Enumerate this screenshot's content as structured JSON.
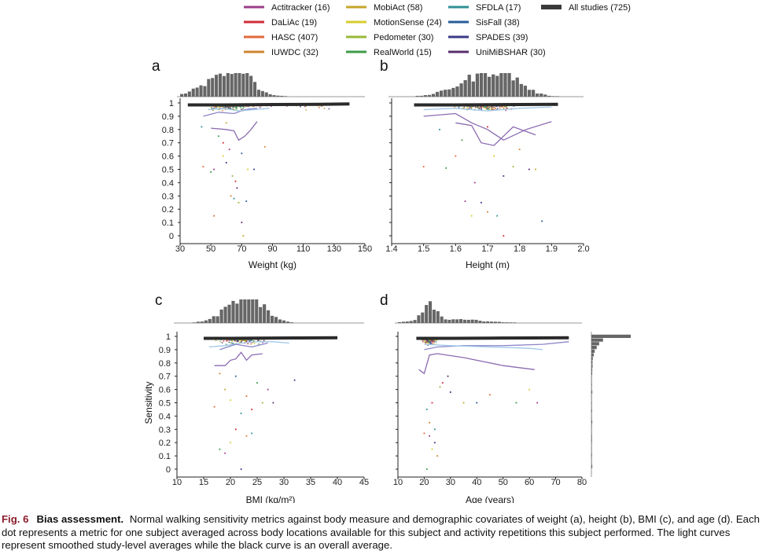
{
  "legend": [
    {
      "label": "Actitracker (16)",
      "color": "#9b3f8a"
    },
    {
      "label": "DaLiAc (19)",
      "color": "#d12b3a"
    },
    {
      "label": "HASC (407)",
      "color": "#e0683a"
    },
    {
      "label": "IUWDC (32)",
      "color": "#cf8530"
    },
    {
      "label": "MobiAct (58)",
      "color": "#c7a52a"
    },
    {
      "label": "MotionSense (24)",
      "color": "#d6cc2e"
    },
    {
      "label": "Pedometer (30)",
      "color": "#98b83a"
    },
    {
      "label": "RealWorld (15)",
      "color": "#3e9c4a"
    },
    {
      "label": "SFDLA (17)",
      "color": "#2f8f95"
    },
    {
      "label": "SisFall (38)",
      "color": "#275d98"
    },
    {
      "label": "SPADES (39)",
      "color": "#3a3a86"
    },
    {
      "label": "UniMiBSHAR (30)",
      "color": "#5a2f6e"
    },
    {
      "label": "All studies (725)",
      "color": "#3a3a3a"
    }
  ],
  "chart_data": [
    {
      "type": "scatter",
      "panel": "a",
      "xlabel": "Weight (kg)",
      "ylabel": "",
      "xlim": [
        30,
        150
      ],
      "ylim": [
        0,
        1
      ],
      "xticks": [
        "30",
        "50",
        "70",
        "90",
        "110",
        "130",
        "150"
      ],
      "yticks": [
        "0",
        "0.1",
        "0.2",
        "0.3",
        "0.4",
        "0.5",
        "0.6",
        "0.7",
        "0.8",
        "0.9",
        "1"
      ],
      "overall_curve": {
        "x": [
          35,
          60,
          90,
          120,
          140
        ],
        "y": [
          0.985,
          0.985,
          0.988,
          0.99,
          0.993
        ]
      },
      "study_curves": [
        {
          "x": [
            45,
            55,
            65,
            72,
            80
          ],
          "y": [
            0.9,
            0.93,
            0.92,
            0.95,
            0.96
          ],
          "color": "#8b86c9"
        },
        {
          "x": [
            50,
            60,
            65,
            68,
            72,
            76,
            80
          ],
          "y": [
            0.81,
            0.8,
            0.79,
            0.72,
            0.75,
            0.8,
            0.86
          ],
          "color": "#8b6bb0"
        },
        {
          "x": [
            48,
            58,
            68,
            78,
            88
          ],
          "y": [
            0.95,
            0.96,
            0.94,
            0.95,
            0.96
          ],
          "color": "#9fc7e8"
        }
      ],
      "points": [
        {
          "x": 45,
          "y": 0.52
        },
        {
          "x": 50,
          "y": 0.48
        },
        {
          "x": 52,
          "y": 0.5
        },
        {
          "x": 58,
          "y": 0.6
        },
        {
          "x": 60,
          "y": 0.55
        },
        {
          "x": 63,
          "y": 0.3
        },
        {
          "x": 65,
          "y": 0.28
        },
        {
          "x": 66,
          "y": 0.41
        },
        {
          "x": 68,
          "y": 0.25
        },
        {
          "x": 70,
          "y": 0.1
        },
        {
          "x": 71,
          "y": 0.0
        },
        {
          "x": 73,
          "y": 0.26
        },
        {
          "x": 52,
          "y": 0.15
        },
        {
          "x": 55,
          "y": 0.75
        },
        {
          "x": 62,
          "y": 0.65
        },
        {
          "x": 74,
          "y": 0.5
        },
        {
          "x": 78,
          "y": 0.5
        },
        {
          "x": 85,
          "y": 0.67
        },
        {
          "x": 44,
          "y": 0.82
        },
        {
          "x": 58,
          "y": 0.7
        },
        {
          "x": 64,
          "y": 0.45
        },
        {
          "x": 67,
          "y": 0.36
        },
        {
          "x": 60,
          "y": 0.85
        },
        {
          "x": 70,
          "y": 0.62
        }
      ]
    },
    {
      "type": "scatter",
      "panel": "b",
      "xlabel": "Height (m)",
      "ylabel": "",
      "xlim": [
        1.4,
        2.0
      ],
      "ylim": [
        0,
        1
      ],
      "xticks": [
        "1.4",
        "1.5",
        "1.6",
        "1.7",
        "1.8",
        "1.9",
        "2.0"
      ],
      "overall_curve": {
        "x": [
          1.47,
          1.6,
          1.7,
          1.8,
          1.92
        ],
        "y": [
          0.985,
          0.985,
          0.987,
          0.988,
          0.99
        ]
      },
      "study_curves": [
        {
          "x": [
            1.5,
            1.6,
            1.65,
            1.7,
            1.75,
            1.82,
            1.9
          ],
          "y": [
            0.9,
            0.92,
            0.85,
            0.8,
            0.72,
            0.8,
            0.86
          ],
          "color": "#8b6bb0"
        },
        {
          "x": [
            1.6,
            1.65,
            1.68,
            1.72,
            1.78,
            1.85
          ],
          "y": [
            0.85,
            0.83,
            0.7,
            0.68,
            0.82,
            0.76
          ],
          "color": "#8b6bb0"
        },
        {
          "x": [
            1.5,
            1.6,
            1.7,
            1.8,
            1.9
          ],
          "y": [
            0.95,
            0.96,
            0.94,
            0.96,
            0.97
          ],
          "color": "#9fc7e8"
        }
      ],
      "points": [
        {
          "x": 1.5,
          "y": 0.52
        },
        {
          "x": 1.57,
          "y": 0.51
        },
        {
          "x": 1.63,
          "y": 0.26
        },
        {
          "x": 1.65,
          "y": 0.15
        },
        {
          "x": 1.68,
          "y": 0.25
        },
        {
          "x": 1.7,
          "y": 0.18
        },
        {
          "x": 1.73,
          "y": 0.15
        },
        {
          "x": 1.75,
          "y": 0.0
        },
        {
          "x": 1.78,
          "y": 0.52
        },
        {
          "x": 1.83,
          "y": 0.5
        },
        {
          "x": 1.85,
          "y": 0.5
        },
        {
          "x": 1.87,
          "y": 0.11
        },
        {
          "x": 1.6,
          "y": 0.6
        },
        {
          "x": 1.62,
          "y": 0.72
        },
        {
          "x": 1.66,
          "y": 0.4
        },
        {
          "x": 1.72,
          "y": 0.6
        },
        {
          "x": 1.75,
          "y": 0.45
        },
        {
          "x": 1.8,
          "y": 0.65
        },
        {
          "x": 1.55,
          "y": 0.8
        },
        {
          "x": 1.7,
          "y": 0.82
        }
      ]
    },
    {
      "type": "scatter",
      "panel": "c",
      "xlabel": "BMI (kg/m²)",
      "ylabel": "Sensitivity",
      "xlim": [
        10,
        45
      ],
      "ylim": [
        0,
        1
      ],
      "xticks": [
        "10",
        "15",
        "20",
        "25",
        "30",
        "35",
        "40",
        "45"
      ],
      "overall_curve": {
        "x": [
          15,
          20,
          25,
          32,
          40
        ],
        "y": [
          0.985,
          0.985,
          0.987,
          0.988,
          0.99
        ]
      },
      "study_curves": [
        {
          "x": [
            17,
            19,
            20,
            21,
            22,
            23,
            24,
            26
          ],
          "y": [
            0.78,
            0.78,
            0.82,
            0.83,
            0.88,
            0.82,
            0.86,
            0.87
          ],
          "color": "#8b6bb0"
        },
        {
          "x": [
            16,
            19,
            22,
            25,
            28,
            31
          ],
          "y": [
            0.92,
            0.93,
            0.95,
            0.96,
            0.96,
            0.95
          ],
          "color": "#9fc7e8"
        },
        {
          "x": [
            18,
            21,
            24,
            27
          ],
          "y": [
            0.9,
            0.94,
            0.92,
            0.95
          ],
          "color": "#8b86c9"
        }
      ],
      "points": [
        {
          "x": 17,
          "y": 0.47
        },
        {
          "x": 18,
          "y": 0.15
        },
        {
          "x": 19,
          "y": 0.12
        },
        {
          "x": 20,
          "y": 0.2
        },
        {
          "x": 22,
          "y": 0.0
        },
        {
          "x": 23,
          "y": 0.25
        },
        {
          "x": 24,
          "y": 0.27
        },
        {
          "x": 24,
          "y": 0.45
        },
        {
          "x": 26,
          "y": 0.5
        },
        {
          "x": 28,
          "y": 0.5
        },
        {
          "x": 19,
          "y": 0.6
        },
        {
          "x": 21,
          "y": 0.7
        },
        {
          "x": 23,
          "y": 0.55
        },
        {
          "x": 25,
          "y": 0.65
        },
        {
          "x": 27,
          "y": 0.6
        },
        {
          "x": 20,
          "y": 0.52
        },
        {
          "x": 32,
          "y": 0.67
        },
        {
          "x": 18,
          "y": 0.72
        },
        {
          "x": 22,
          "y": 0.42
        },
        {
          "x": 21,
          "y": 0.3
        }
      ]
    },
    {
      "type": "scatter",
      "panel": "d",
      "xlabel": "Age (years)",
      "ylabel": "",
      "xlim": [
        10,
        80
      ],
      "ylim": [
        0,
        1
      ],
      "xticks": [
        "10",
        "20",
        "30",
        "40",
        "50",
        "60",
        "70",
        "80"
      ],
      "overall_curve": {
        "x": [
          17,
          30,
          45,
          60,
          75
        ],
        "y": [
          0.985,
          0.985,
          0.987,
          0.988,
          0.99
        ]
      },
      "study_curves": [
        {
          "x": [
            18,
            20,
            22,
            25,
            35,
            50,
            62
          ],
          "y": [
            0.75,
            0.72,
            0.86,
            0.87,
            0.84,
            0.78,
            0.75
          ],
          "color": "#8b6bb0"
        },
        {
          "x": [
            20,
            25,
            35,
            50,
            65,
            75
          ],
          "y": [
            0.9,
            0.92,
            0.93,
            0.93,
            0.94,
            0.96
          ],
          "color": "#8b86c9"
        },
        {
          "x": [
            20,
            30,
            45,
            60,
            65
          ],
          "y": [
            0.94,
            0.93,
            0.92,
            0.91,
            0.9
          ],
          "color": "#9fc7e8"
        }
      ],
      "points": [
        {
          "x": 20,
          "y": 0.27
        },
        {
          "x": 21,
          "y": 0.0
        },
        {
          "x": 22,
          "y": 0.25
        },
        {
          "x": 23,
          "y": 0.15
        },
        {
          "x": 24,
          "y": 0.2
        },
        {
          "x": 25,
          "y": 0.1
        },
        {
          "x": 21,
          "y": 0.45
        },
        {
          "x": 23,
          "y": 0.5
        },
        {
          "x": 26,
          "y": 0.62
        },
        {
          "x": 29,
          "y": 0.7
        },
        {
          "x": 35,
          "y": 0.5
        },
        {
          "x": 40,
          "y": 0.5
        },
        {
          "x": 45,
          "y": 0.56
        },
        {
          "x": 55,
          "y": 0.5
        },
        {
          "x": 63,
          "y": 0.5
        },
        {
          "x": 60,
          "y": 0.6
        },
        {
          "x": 30,
          "y": 0.58
        },
        {
          "x": 22,
          "y": 0.35
        },
        {
          "x": 24,
          "y": 0.3
        },
        {
          "x": 27,
          "y": 0.65
        }
      ]
    }
  ],
  "caption": {
    "fig_num": "Fig. 6",
    "title": "Bias assessment.",
    "body": "Normal walking sensitivity metrics against body measure and demographic covariates of weight (a), height (b), BMI (c), and age (d). Each dot represents a metric for one subject averaged across body locations available for this subject and activity repetitions this subject performed. The light curves represent smoothed study-level averages while the black curve is an overall average."
  }
}
